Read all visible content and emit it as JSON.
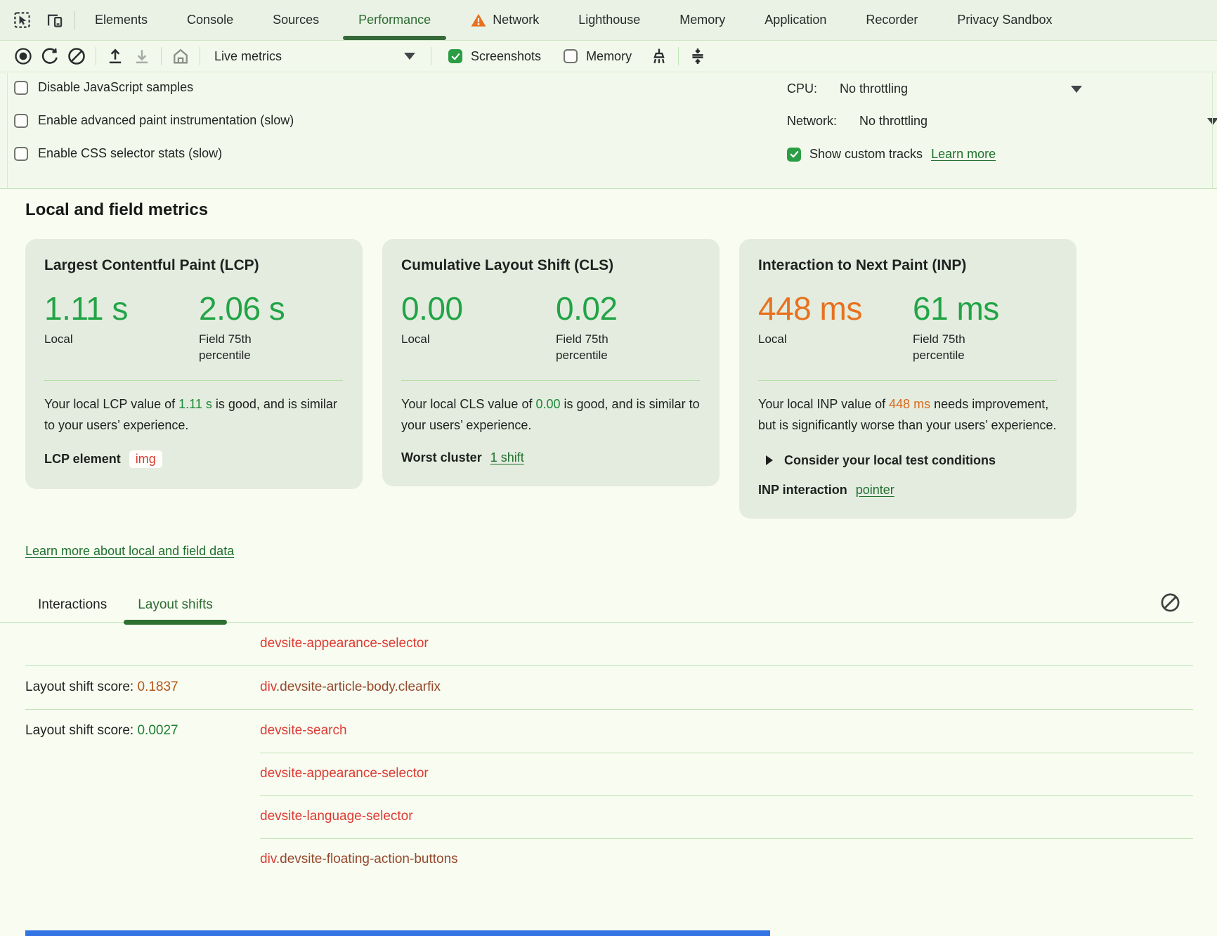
{
  "colors": {
    "accent_good_green": "#22a447",
    "accent_poor_orange": "#e8711f",
    "link_green": "#20702f",
    "active_tab_green": "#2d6b31",
    "selector_red": "#de3b33",
    "selector_class_brown": "#95482c",
    "score_poor": "#b45415",
    "score_good": "#1b7e33",
    "checkbox_green": "#2b9e45",
    "card_bg": "#e4ecdf",
    "blue_bar": "#3473e3"
  },
  "tabbar": {
    "tabs": [
      {
        "label": "Elements",
        "active": false,
        "warning": false
      },
      {
        "label": "Console",
        "active": false,
        "warning": false
      },
      {
        "label": "Sources",
        "active": false,
        "warning": false
      },
      {
        "label": "Performance",
        "active": true,
        "warning": false
      },
      {
        "label": "Network",
        "active": false,
        "warning": true
      },
      {
        "label": "Lighthouse",
        "active": false,
        "warning": false
      },
      {
        "label": "Memory",
        "active": false,
        "warning": false
      },
      {
        "label": "Application",
        "active": false,
        "warning": false
      },
      {
        "label": "Recorder",
        "active": false,
        "warning": false
      },
      {
        "label": "Privacy Sandbox",
        "active": false,
        "warning": false
      }
    ],
    "icons": [
      "inspect-icon",
      "device-toolbar-icon"
    ]
  },
  "toolbar": {
    "icons": [
      "record-icon",
      "reload-icon",
      "clear-icon",
      "upload-icon",
      "download-icon",
      "home-icon",
      "collect-garbage-icon",
      "collapse-icon"
    ],
    "live_metrics_label": "Live metrics",
    "screenshots": {
      "label": "Screenshots",
      "checked": true
    },
    "memory": {
      "label": "Memory",
      "checked": false
    }
  },
  "settings": {
    "options": [
      {
        "label": "Disable JavaScript samples",
        "checked": false
      },
      {
        "label": "Enable advanced paint instrumentation (slow)",
        "checked": false
      },
      {
        "label": "Enable CSS selector stats (slow)",
        "checked": false
      }
    ],
    "cpu": {
      "label": "CPU:",
      "value": "No throttling"
    },
    "network": {
      "label": "Network:",
      "value": "No throttling"
    },
    "custom_tracks": {
      "label": "Show custom tracks",
      "checked": true,
      "link": "Learn more"
    }
  },
  "metrics": {
    "heading": "Local and field metrics",
    "cards": [
      {
        "title": "Largest Contentful Paint (LCP)",
        "values": [
          {
            "value": "1.11 s",
            "label": "Local",
            "status": "good"
          },
          {
            "value": "2.06 s",
            "label": "Field 75th percentile",
            "status": "good"
          }
        ],
        "desc": {
          "before": "Your local LCP value of ",
          "value": "1.11 s",
          "status": "good",
          "after": " is good, and is similar to your users’ experience."
        },
        "footer": {
          "label": "LCP element",
          "chip": "img"
        }
      },
      {
        "title": "Cumulative Layout Shift (CLS)",
        "values": [
          {
            "value": "0.00",
            "label": "Local",
            "status": "good"
          },
          {
            "value": "0.02",
            "label": "Field 75th percentile",
            "status": "good"
          }
        ],
        "desc": {
          "before": "Your local CLS value of ",
          "value": "0.00",
          "status": "good",
          "after": " is good, and is similar to your users’ experience."
        },
        "footer": {
          "label": "Worst cluster",
          "link": "1 shift"
        }
      },
      {
        "title": "Interaction to Next Paint (INP)",
        "values": [
          {
            "value": "448 ms",
            "label": "Local",
            "status": "poor"
          },
          {
            "value": "61 ms",
            "label": "Field 75th percentile",
            "status": "good"
          }
        ],
        "desc": {
          "before": "Your local INP value of ",
          "value": "448 ms",
          "status": "poor",
          "after": " needs improvement, but is significantly worse than your users’ experience."
        },
        "disclosure": "Consider your local test conditions",
        "footer": {
          "label": "INP interaction",
          "link": "pointer"
        }
      }
    ],
    "learn_more_link": "Learn more about local and field data"
  },
  "shifts": {
    "tabs": [
      {
        "label": "Interactions",
        "active": false
      },
      {
        "label": "Layout shifts",
        "active": true
      }
    ],
    "rows": [
      {
        "divider": "none",
        "score_label": "",
        "score": "",
        "score_status": "",
        "selector": [
          {
            "text": "devsite-appearance-selector",
            "part": "tag"
          }
        ]
      },
      {
        "divider": "full",
        "score_label": "Layout shift score: ",
        "score": "0.1837",
        "score_status": "poor",
        "selector": [
          {
            "text": "div",
            "part": "tag"
          },
          {
            "text": ".devsite-article-body.clearfix",
            "part": "cls"
          }
        ]
      },
      {
        "divider": "full",
        "score_label": "Layout shift score: ",
        "score": "0.0027",
        "score_status": "good",
        "selector": [
          {
            "text": "devsite-search",
            "part": "tag"
          }
        ]
      },
      {
        "divider": "indent",
        "score_label": "",
        "score": "",
        "score_status": "",
        "selector": [
          {
            "text": "devsite-appearance-selector",
            "part": "tag"
          }
        ]
      },
      {
        "divider": "indent",
        "score_label": "",
        "score": "",
        "score_status": "",
        "selector": [
          {
            "text": "devsite-language-selector",
            "part": "tag"
          }
        ]
      },
      {
        "divider": "indent",
        "score_label": "",
        "score": "",
        "score_status": "",
        "selector": [
          {
            "text": "div",
            "part": "tag"
          },
          {
            "text": ".devsite-floating-action-buttons",
            "part": "cls"
          }
        ]
      }
    ]
  }
}
